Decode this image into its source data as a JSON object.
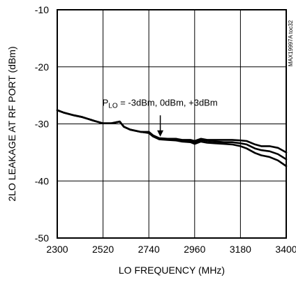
{
  "chart_data": {
    "type": "line",
    "title": "",
    "xlabel": "LO FREQUENCY (MHz)",
    "ylabel": "2LO LEAKAGE AT RF PORT (dBm)",
    "xlim": [
      2300,
      3400
    ],
    "ylim": [
      -50,
      -10
    ],
    "xticks": [
      2300,
      2520,
      2740,
      2960,
      3180,
      3400
    ],
    "xtick_labels": [
      "2300",
      "2520",
      "2740",
      "2960",
      "3180",
      "3400"
    ],
    "yticks": [
      -10,
      -20,
      -30,
      -40,
      -50
    ],
    "ytick_labels": [
      "-10",
      "-20",
      "-30",
      "-40",
      "-50"
    ],
    "grid": true,
    "annotation": {
      "prefix": "P",
      "subscript": "LO",
      "suffix": " = -3dBm, 0dBm, +3dBm",
      "arrow_to": [
        2795,
        -32.6
      ]
    },
    "side_label": "MAX19997A toc32",
    "series": [
      {
        "x": [
          2300,
          2330,
          2380,
          2420,
          2480,
          2520,
          2560,
          2600,
          2620,
          2650,
          2700,
          2740,
          2760,
          2790,
          2830,
          2870,
          2900,
          2940,
          2960,
          2990,
          3020,
          3060,
          3100,
          3140,
          3180,
          3210,
          3250,
          3280,
          3320,
          3360,
          3400
        ],
        "values": [
          -27.6,
          -28.0,
          -28.5,
          -28.8,
          -29.5,
          -29.9,
          -29.9,
          -29.6,
          -30.5,
          -31.0,
          -31.4,
          -31.4,
          -32.0,
          -32.5,
          -32.6,
          -32.6,
          -32.8,
          -32.8,
          -33.0,
          -32.6,
          -32.8,
          -32.8,
          -32.8,
          -32.8,
          -32.9,
          -33.0,
          -33.6,
          -33.9,
          -33.9,
          -34.2,
          -35.0
        ]
      },
      {
        "x": [
          2300,
          2330,
          2380,
          2420,
          2480,
          2520,
          2560,
          2600,
          2620,
          2650,
          2700,
          2740,
          2760,
          2790,
          2830,
          2870,
          2900,
          2940,
          2960,
          2990,
          3020,
          3060,
          3100,
          3140,
          3180,
          3210,
          3250,
          3280,
          3320,
          3360,
          3400
        ],
        "values": [
          -27.6,
          -28.0,
          -28.5,
          -28.8,
          -29.5,
          -29.9,
          -29.9,
          -29.6,
          -30.5,
          -31.0,
          -31.4,
          -31.5,
          -32.1,
          -32.6,
          -32.7,
          -32.7,
          -32.9,
          -33.0,
          -33.2,
          -32.8,
          -33.0,
          -33.1,
          -33.2,
          -33.2,
          -33.4,
          -33.6,
          -34.3,
          -34.6,
          -34.8,
          -35.3,
          -36.2
        ]
      },
      {
        "x": [
          2300,
          2330,
          2380,
          2420,
          2480,
          2520,
          2560,
          2600,
          2620,
          2650,
          2700,
          2740,
          2760,
          2790,
          2830,
          2870,
          2900,
          2940,
          2960,
          2990,
          3020,
          3060,
          3100,
          3140,
          3180,
          3210,
          3250,
          3280,
          3320,
          3360,
          3400
        ],
        "values": [
          -27.6,
          -28.0,
          -28.5,
          -28.8,
          -29.5,
          -29.9,
          -29.9,
          -29.6,
          -30.5,
          -31.0,
          -31.4,
          -31.6,
          -32.2,
          -32.7,
          -32.8,
          -32.9,
          -33.1,
          -33.2,
          -33.5,
          -33.1,
          -33.3,
          -33.4,
          -33.5,
          -33.6,
          -33.9,
          -34.3,
          -35.1,
          -35.5,
          -35.8,
          -36.4,
          -37.4
        ]
      }
    ]
  }
}
